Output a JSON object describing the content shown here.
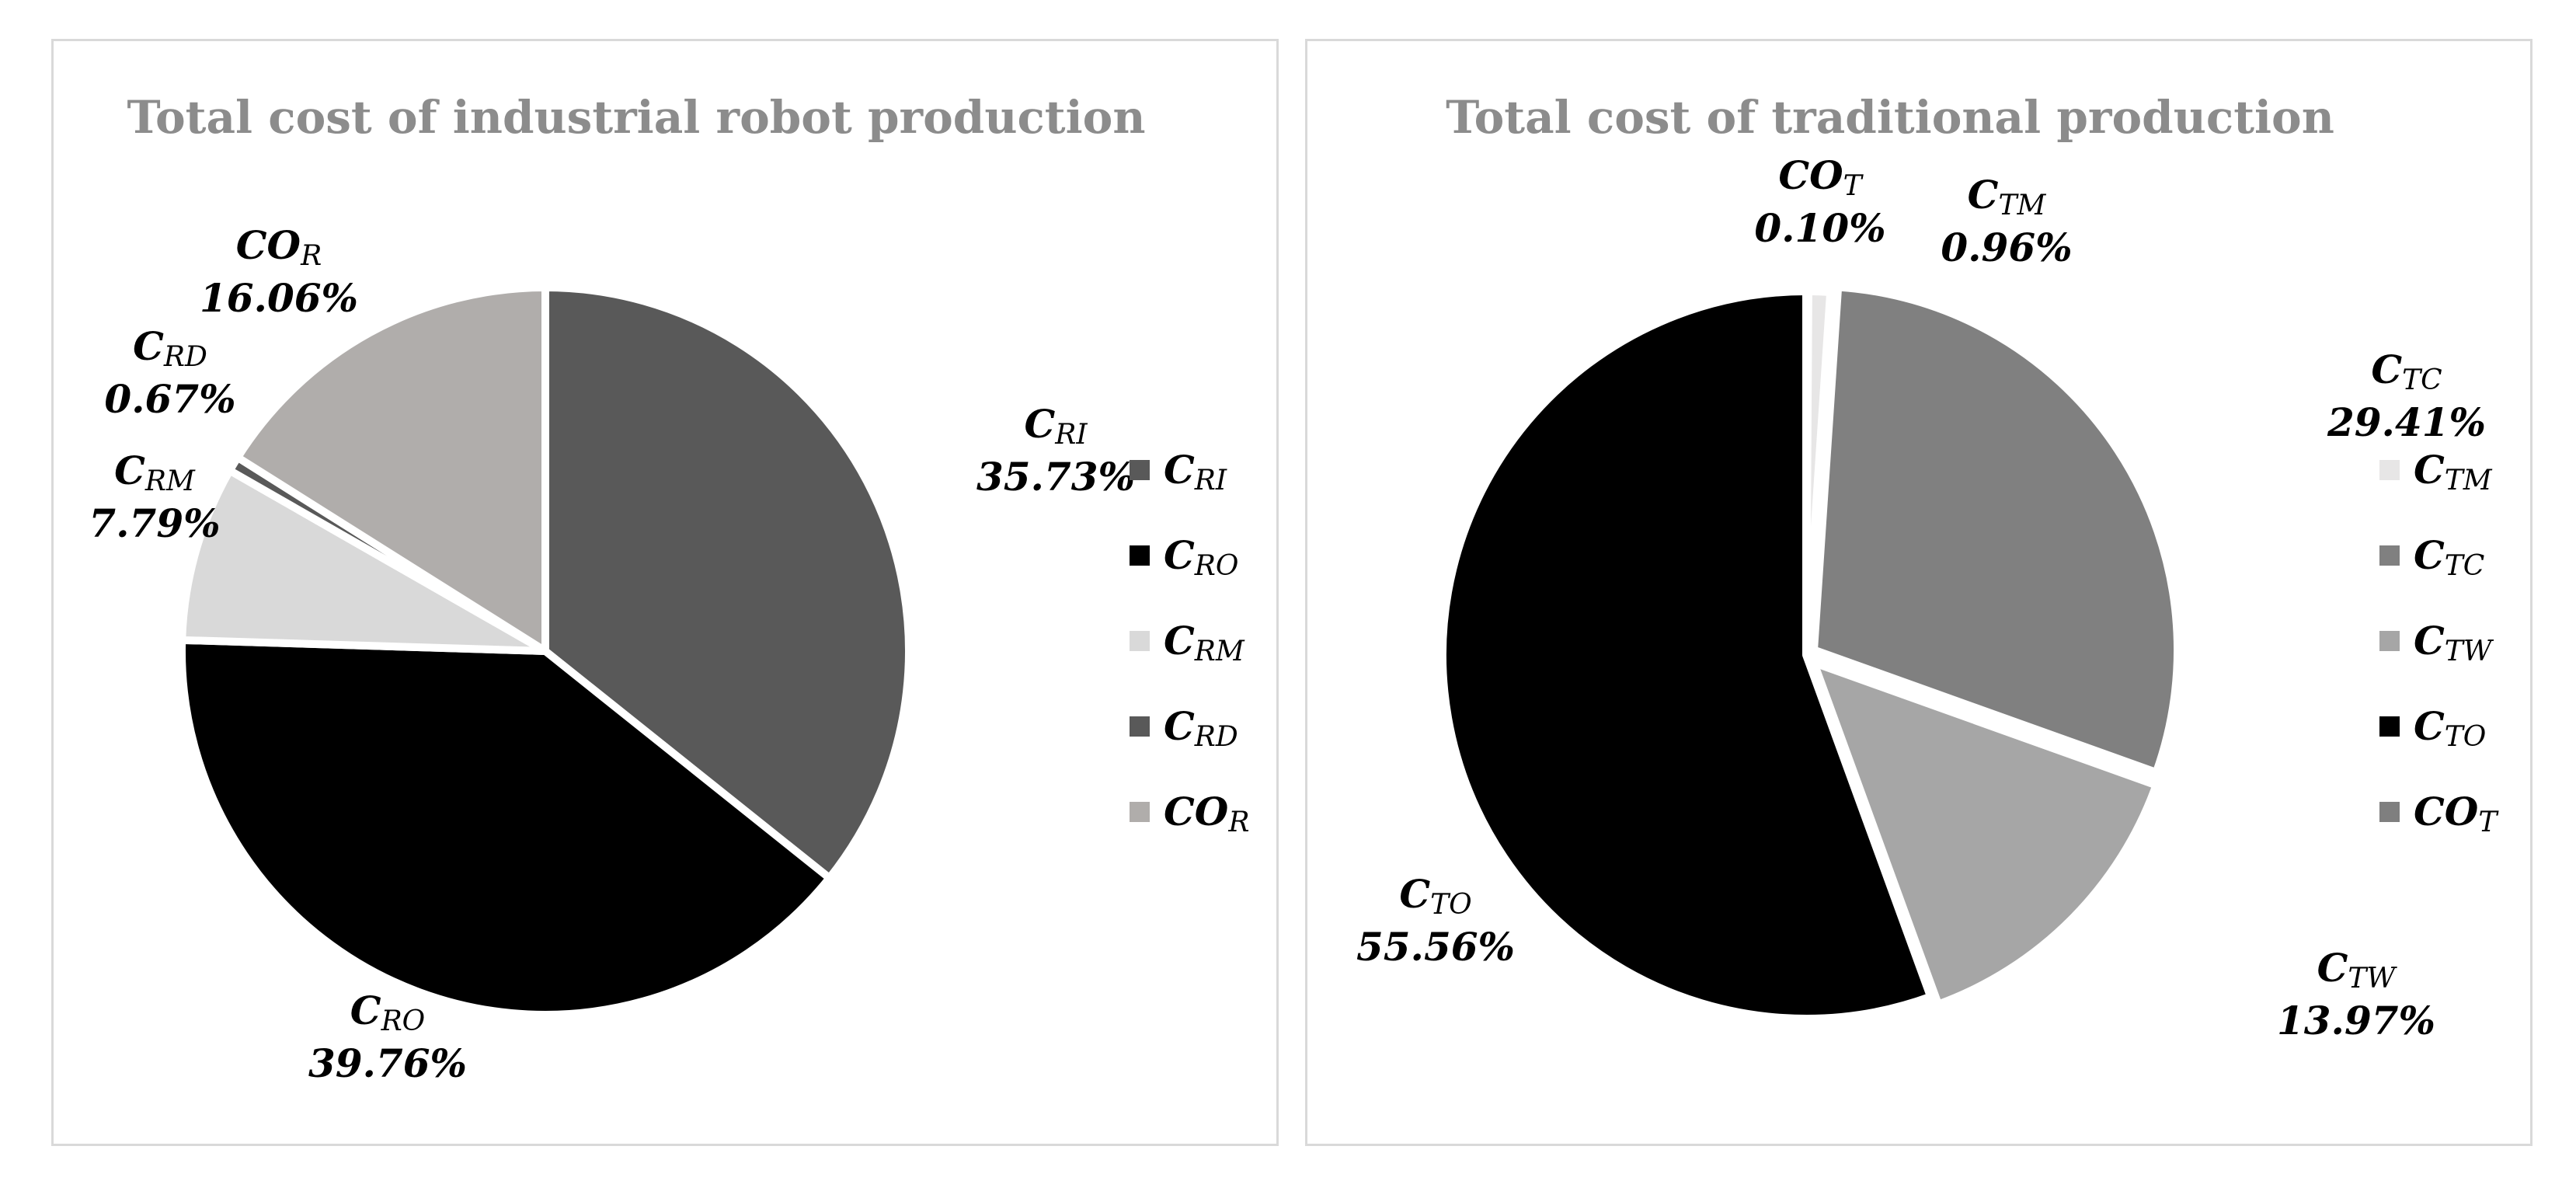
{
  "chart_data": [
    {
      "type": "pie",
      "title": "Total cost of industrial robot production",
      "series": [
        {
          "name": "C",
          "sub": "RI",
          "value": 35.73,
          "label": "35.73%",
          "color": "#595959"
        },
        {
          "name": "C",
          "sub": "RO",
          "value": 39.76,
          "label": "39.76%",
          "color": "#000000"
        },
        {
          "name": "C",
          "sub": "RM",
          "value": 7.79,
          "label": "7.79%",
          "color": "#d9d9d9"
        },
        {
          "name": "C",
          "sub": "RD",
          "value": 0.67,
          "label": "0.67%",
          "color": "#595959"
        },
        {
          "name": "CO",
          "sub": "R",
          "value": 16.06,
          "label": "16.06%",
          "color": "#b0adab"
        }
      ],
      "legend_order": [
        0,
        1,
        2,
        3,
        4
      ],
      "legend": "right"
    },
    {
      "type": "pie",
      "title": "Total cost of traditional production",
      "series": [
        {
          "name": "CO",
          "sub": "T",
          "value": 0.1,
          "label": "0.10%",
          "color": "#7f7f7f"
        },
        {
          "name": "C",
          "sub": "TM",
          "value": 0.96,
          "label": "0.96%",
          "color": "#e7e6e6"
        },
        {
          "name": "C",
          "sub": "TC",
          "value": 29.41,
          "label": "29.41%",
          "color": "#808080"
        },
        {
          "name": "C",
          "sub": "TW",
          "value": 13.97,
          "label": "13.97%",
          "color": "#a6a6a6"
        },
        {
          "name": "C",
          "sub": "TO",
          "value": 55.56,
          "label": "55.56%",
          "color": "#000000"
        }
      ],
      "legend_order": [
        1,
        2,
        3,
        4,
        0
      ],
      "legend": "right"
    }
  ]
}
